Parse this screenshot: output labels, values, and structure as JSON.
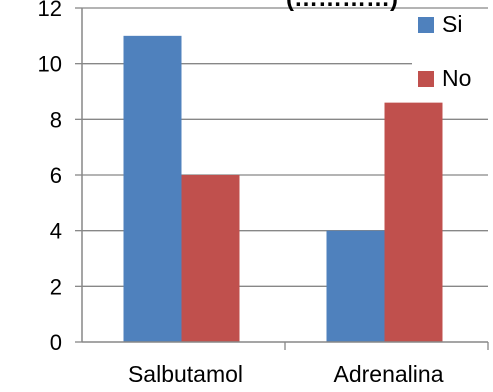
{
  "chart_data": {
    "type": "bar",
    "title_fragment": "(…………)",
    "categories": [
      "Salbutamol",
      "Adrenalina"
    ],
    "series": [
      {
        "name": "Si",
        "values": [
          11,
          4
        ],
        "color": "#4F81BD"
      },
      {
        "name": "No",
        "values": [
          6,
          8.6
        ],
        "color": "#C0504D"
      }
    ],
    "ylim": [
      0,
      12
    ],
    "yticks": [
      0,
      2,
      4,
      6,
      8,
      10,
      12
    ],
    "grid": true,
    "legend_position": "top-right",
    "xlabel": "",
    "ylabel": ""
  }
}
